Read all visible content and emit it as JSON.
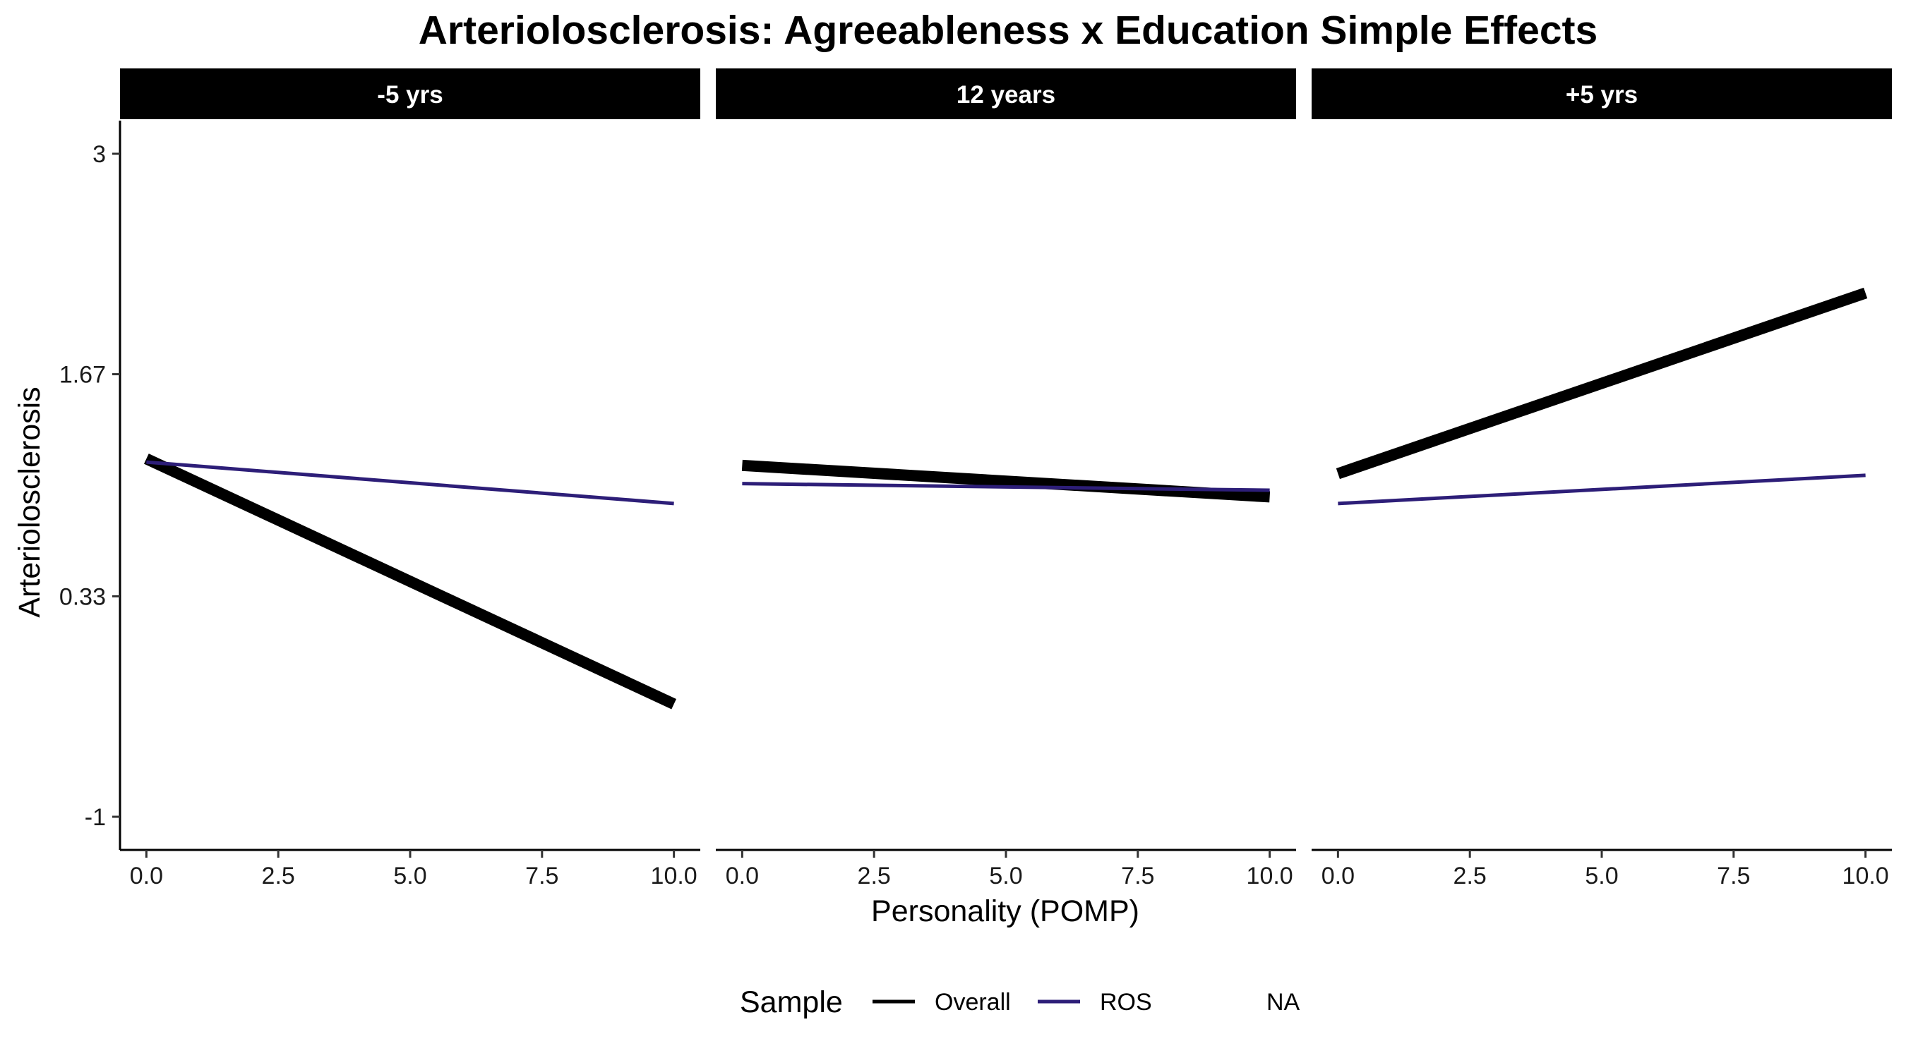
{
  "chart_data": {
    "type": "line",
    "title": "Arteriolosclerosis: Agreeableness x Education Simple Effects",
    "xlabel": "Personality (POMP)",
    "ylabel": "Arteriolosclerosis",
    "xlim": [
      -0.5,
      10.5
    ],
    "ylim": [
      -1.2,
      3.2
    ],
    "x_ticks": [
      0,
      2.5,
      5,
      7.5,
      10
    ],
    "x_tick_labels": [
      "0.0",
      "2.5",
      "5.0",
      "7.5",
      "10.0"
    ],
    "y_ticks": [
      -1,
      0.33,
      1.67,
      3
    ],
    "y_tick_labels": [
      "-1",
      "0.33",
      "1.67",
      "3"
    ],
    "grid": false,
    "legend": {
      "title": "Sample",
      "position": "bottom",
      "entries": [
        {
          "label": "Overall",
          "color": "#000000"
        },
        {
          "label": "ROS",
          "color": "#2d1e78"
        },
        {
          "label": "NA",
          "color": null
        }
      ]
    },
    "panels": [
      {
        "label": "-5 yrs",
        "series": [
          {
            "name": "Overall",
            "color": "#000000",
            "x": [
              0,
              10
            ],
            "y": [
              1.16,
              -0.32
            ]
          },
          {
            "name": "ROS",
            "color": "#2d1e78",
            "x": [
              0,
              10
            ],
            "y": [
              1.14,
              0.89
            ]
          }
        ]
      },
      {
        "label": "12 years",
        "series": [
          {
            "name": "Overall",
            "color": "#000000",
            "x": [
              0,
              10
            ],
            "y": [
              1.12,
              0.93
            ]
          },
          {
            "name": "ROS",
            "color": "#2d1e78",
            "x": [
              0,
              10
            ],
            "y": [
              1.01,
              0.97
            ]
          }
        ]
      },
      {
        "label": "+5 yrs",
        "series": [
          {
            "name": "Overall",
            "color": "#000000",
            "x": [
              0,
              10
            ],
            "y": [
              1.07,
              2.16
            ]
          },
          {
            "name": "ROS",
            "color": "#2d1e78",
            "x": [
              0,
              10
            ],
            "y": [
              0.89,
              1.06
            ]
          }
        ]
      }
    ]
  }
}
